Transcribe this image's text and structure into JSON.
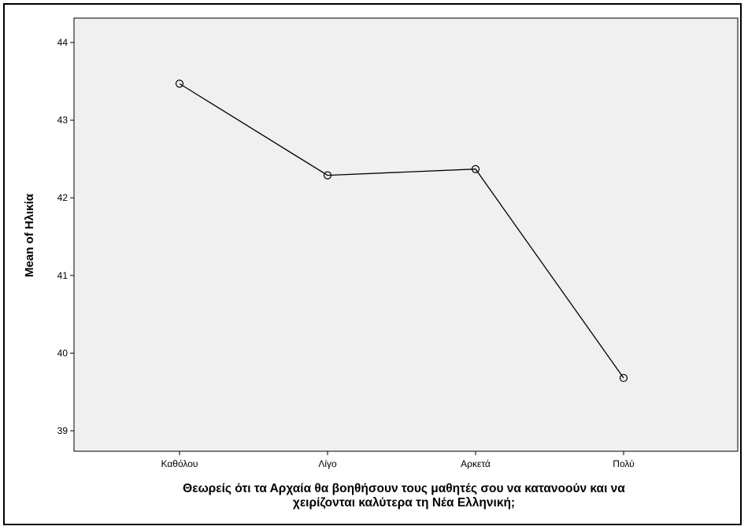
{
  "chart_data": {
    "type": "line",
    "categories": [
      "Καθόλου",
      "Λίγο",
      "Αρκετά",
      "Πολύ"
    ],
    "values": [
      43.47,
      42.29,
      42.37,
      39.68
    ],
    "ylabel": "Mean of Ηλικία",
    "xlabel_lines": [
      "Θεωρείς ότι τα Αρχαία θα βοηθήσουν τους μαθητές σου να κατανοούν και να",
      "χειρίζονται καλύτερα τη Νέα Ελληνική;"
    ],
    "yticks": [
      39,
      40,
      41,
      42,
      43,
      44
    ],
    "ylim": [
      38.75,
      44.3
    ],
    "grid": false,
    "legend": "none",
    "marker": "open-circle",
    "colors": {
      "plot_background": "#f0f0f0",
      "line": "#000000",
      "page_background": "#ffffff"
    }
  }
}
